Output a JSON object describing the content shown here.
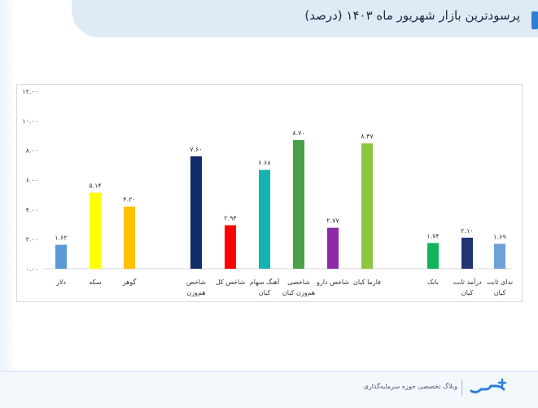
{
  "header": {
    "title": "پرسودترین بازار شهریور ماه ۱۴۰۳ (درصد)"
  },
  "footer": {
    "tagline": "وبلاگ تخصصی حوزه سرمایه‌گذاری",
    "logo_text": "سرمایه"
  },
  "chart_data": {
    "type": "bar",
    "title": "",
    "xlabel": "",
    "ylabel": "",
    "ylim": [
      0,
      12
    ],
    "yticks": [
      "۰.۰۰",
      "۲.۰۰",
      "۴.۰۰",
      "۶.۰۰",
      "۸.۰۰",
      "۱۰.۰۰",
      "۱۲.۰۰"
    ],
    "grid": false,
    "categories": [
      {
        "label": [
          "دلار"
        ],
        "value": 1.62,
        "value_label": "۱.۶۲",
        "color": "#5b9bd5"
      },
      {
        "label": [
          "سکه"
        ],
        "value": 5.14,
        "value_label": "۵.۱۴",
        "color": "#ffff00"
      },
      {
        "label": [
          "گوهر"
        ],
        "value": 4.2,
        "value_label": "۴.۲۰",
        "color": "#ffc000"
      },
      {
        "label": [
          "شاخص",
          "هم‌وزن"
        ],
        "value": 7.6,
        "value_label": "۷.۶۰",
        "color": "#0f2c6b"
      },
      {
        "label": [
          "شاخص کل"
        ],
        "value": 2.94,
        "value_label": "۲.۹۴",
        "color": "#ff0000"
      },
      {
        "label": [
          "آهنگ سهام",
          "کیان"
        ],
        "value": 6.68,
        "value_label": "۶.۶۸",
        "color": "#13b3b3"
      },
      {
        "label": [
          "شاخصی",
          "هم‌وزن کیان"
        ],
        "value": 8.7,
        "value_label": "۸.۷۰",
        "color": "#4aa147"
      },
      {
        "label": [
          "شاخص دارو"
        ],
        "value": 2.77,
        "value_label": "۲.۷۷",
        "color": "#8e2aa8"
      },
      {
        "label": [
          "فارما کیان"
        ],
        "value": 8.47,
        "value_label": "۸.۴۷",
        "color": "#8ec63f"
      },
      {
        "label": [
          "بانک"
        ],
        "value": 1.74,
        "value_label": "۱.۷۴",
        "color": "#13b35b"
      },
      {
        "label": [
          "درآمد ثابت",
          "کیان"
        ],
        "value": 2.1,
        "value_label": "۲.۱۰",
        "color": "#1f3470"
      },
      {
        "label": [
          "ندای ثابت",
          "کیان"
        ],
        "value": 1.69,
        "value_label": "۱.۶۹",
        "color": "#6fa0d8"
      }
    ]
  }
}
